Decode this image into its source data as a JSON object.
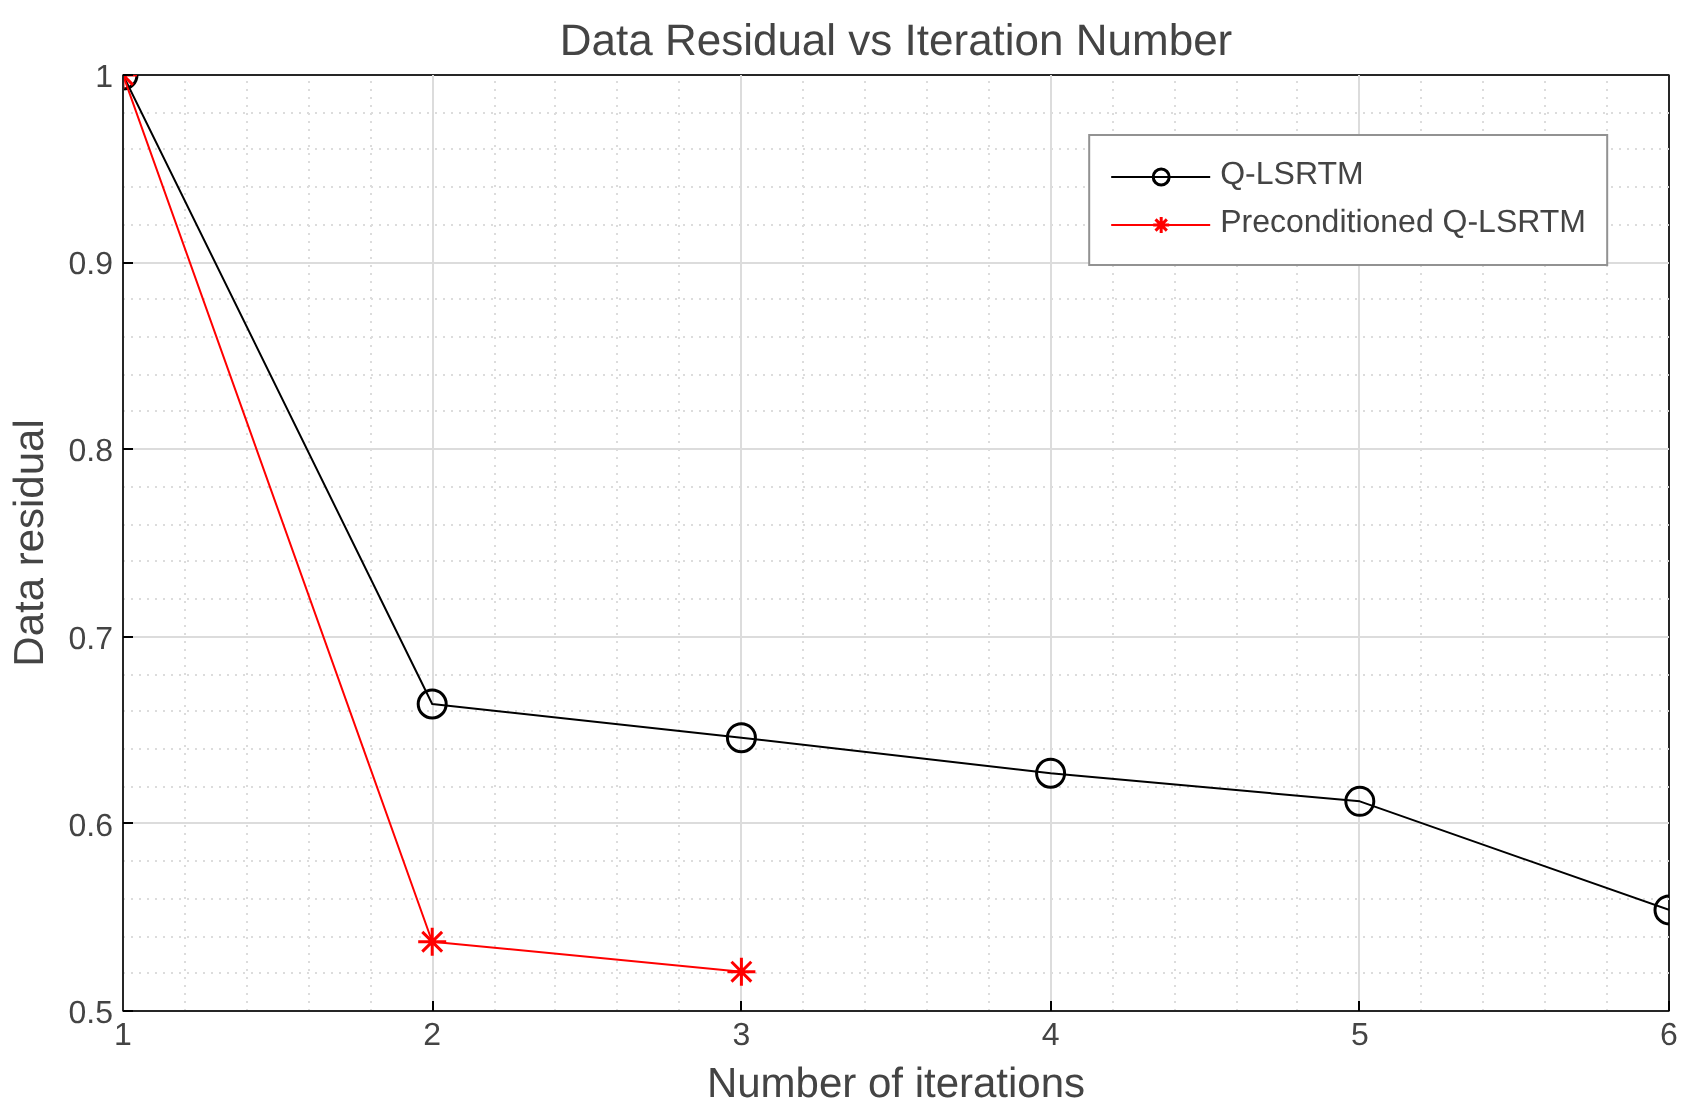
{
  "chart_data": {
    "type": "line",
    "title": "Data Residual vs Iteration Number",
    "xlabel": "Number of iterations",
    "ylabel": "Data residual",
    "x": [
      1,
      2,
      3,
      4,
      5,
      6
    ],
    "series": [
      {
        "name": "Q-LSRTM",
        "color": "#000000",
        "marker": "circle",
        "values": [
          1,
          0.664,
          0.646,
          0.627,
          0.612,
          0.554
        ]
      },
      {
        "name": "Preconditioned Q-LSRTM",
        "color": "#ff0000",
        "marker": "cross",
        "values": [
          1,
          0.537,
          0.521,
          null,
          null,
          null
        ]
      }
    ],
    "xlim": [
      1,
      6
    ],
    "xticks": [
      1,
      2,
      3,
      4,
      5,
      6
    ],
    "ylim": [
      0.5,
      1
    ],
    "yticks": [
      0.5,
      0.6,
      0.7,
      0.8,
      0.9,
      1
    ],
    "grid": true,
    "legend": "top right",
    "line_style": "solid"
  }
}
